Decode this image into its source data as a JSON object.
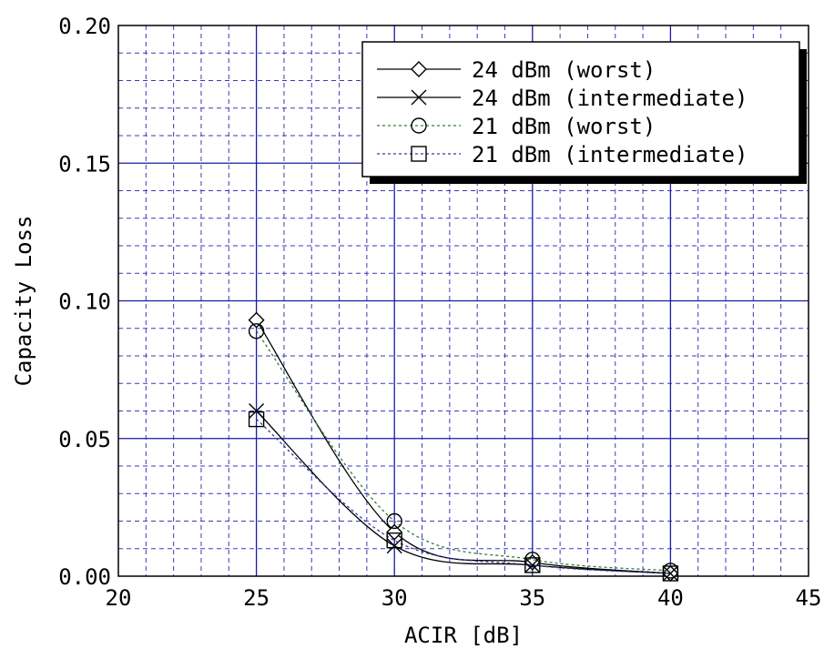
{
  "chart_data": {
    "type": "line",
    "xlabel": "ACIR [dB]",
    "ylabel": "Capacity Loss",
    "xlim": [
      20,
      45
    ],
    "ylim": [
      0,
      0.2
    ],
    "x_ticks": [
      20,
      25,
      30,
      35,
      40,
      45
    ],
    "x_tick_labels": [
      "20",
      "25",
      "30",
      "35",
      "40",
      "45"
    ],
    "y_ticks": [
      0,
      0.05,
      0.1,
      0.15,
      0.2
    ],
    "y_tick_labels": [
      "0.00",
      "0.05",
      "0.10",
      "0.15",
      "0.20"
    ],
    "x_minor_step": 1,
    "y_minor_step": 0.01,
    "grid": true,
    "legend_position": "top-right",
    "x": [
      25,
      30,
      35,
      40
    ],
    "series": [
      {
        "name": "24 dBm (worst)",
        "values": [
          0.093,
          0.016,
          0.005,
          0.001
        ],
        "marker": "diamond",
        "line": "solid",
        "color": "#000000"
      },
      {
        "name": "24 dBm (intermediate)",
        "values": [
          0.06,
          0.011,
          0.004,
          0.001
        ],
        "marker": "cross",
        "line": "solid",
        "color": "#000000"
      },
      {
        "name": "21 dBm (worst)",
        "values": [
          0.089,
          0.02,
          0.006,
          0.002
        ],
        "marker": "circle",
        "line": "dotted",
        "color": "#3a7a3a"
      },
      {
        "name": "21 dBm (intermediate)",
        "values": [
          0.057,
          0.013,
          0.004,
          0.001
        ],
        "marker": "square",
        "line": "dotted",
        "color": "#3a3aa0"
      }
    ]
  },
  "colors": {
    "major_grid": "#1a1aa8",
    "minor_grid": "#3a3ab8",
    "frame": "#000000"
  }
}
